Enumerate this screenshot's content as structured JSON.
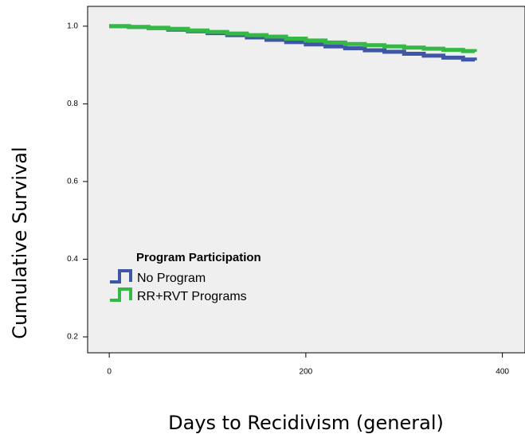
{
  "chart_data": {
    "type": "step",
    "x_label": "Days to Recidivism (general)",
    "y_label": "Cumulative Survival",
    "legend_title": "Program Participation",
    "legend_position": "left",
    "xlim": [
      -22,
      423
    ],
    "xticks": [
      0,
      200,
      400
    ],
    "ylim": [
      0.159,
      1.051
    ],
    "yticks": [
      {
        "value": 1.0,
        "label": "1.0"
      },
      0.8,
      0.6,
      0.4,
      0.2
    ],
    "x": [
      0,
      20,
      40,
      60,
      80,
      100,
      120,
      140,
      160,
      180,
      200,
      220,
      240,
      260,
      280,
      300,
      320,
      340,
      360,
      372
    ],
    "series": [
      {
        "name": "No Program",
        "color": "#3f55a5",
        "values": [
          1.0,
          0.998,
          0.995,
          0.991,
          0.987,
          0.982,
          0.977,
          0.971,
          0.965,
          0.959,
          0.953,
          0.948,
          0.943,
          0.938,
          0.934,
          0.929,
          0.924,
          0.919,
          0.914,
          0.912
        ]
      },
      {
        "name": "RR+RVT Programs",
        "color": "#35b846",
        "values": [
          1.0,
          0.998,
          0.996,
          0.993,
          0.989,
          0.985,
          0.981,
          0.977,
          0.973,
          0.968,
          0.963,
          0.958,
          0.954,
          0.951,
          0.948,
          0.945,
          0.942,
          0.939,
          0.936,
          0.934
        ]
      }
    ]
  }
}
